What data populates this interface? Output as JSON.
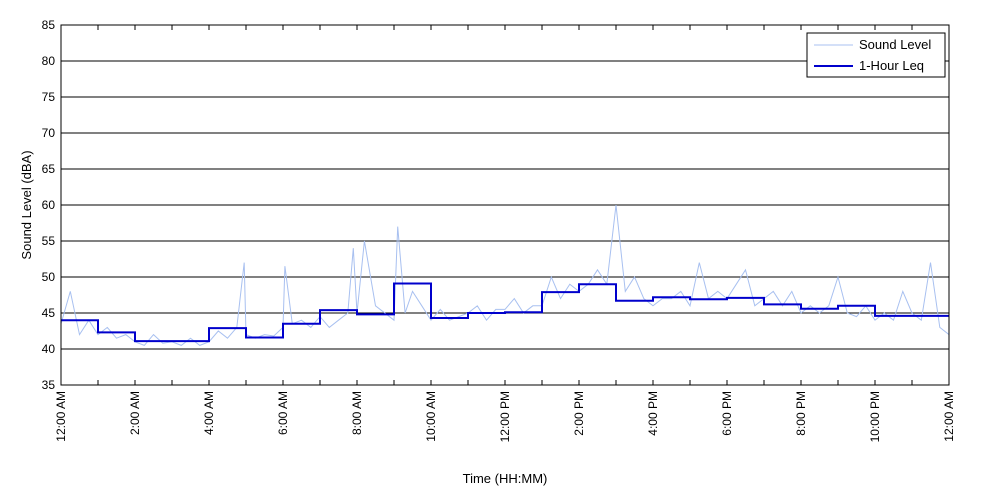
{
  "chart_data": {
    "type": "line",
    "xlabel": "Time (HH:MM)",
    "ylabel": "Sound Level (dBA)",
    "ylim": [
      35,
      85
    ],
    "xlim_hours": [
      0,
      24
    ],
    "yticks": [
      35,
      40,
      45,
      50,
      55,
      60,
      65,
      70,
      75,
      80,
      85
    ],
    "xticks": [
      {
        "hour": 0,
        "label": "12:00 AM"
      },
      {
        "hour": 2,
        "label": "2:00 AM"
      },
      {
        "hour": 4,
        "label": "4:00 AM"
      },
      {
        "hour": 6,
        "label": "6:00 AM"
      },
      {
        "hour": 8,
        "label": "8:00 AM"
      },
      {
        "hour": 10,
        "label": "10:00 AM"
      },
      {
        "hour": 12,
        "label": "12:00 PM"
      },
      {
        "hour": 14,
        "label": "2:00 PM"
      },
      {
        "hour": 16,
        "label": "4:00 PM"
      },
      {
        "hour": 18,
        "label": "6:00 PM"
      },
      {
        "hour": 20,
        "label": "8:00 PM"
      },
      {
        "hour": 22,
        "label": "10:00 PM"
      },
      {
        "hour": 24,
        "label": "12:00 AM"
      }
    ],
    "grid": "horizontal",
    "legend_position": "top-right",
    "series": [
      {
        "name": "Sound Level",
        "color": "#a8c0f0",
        "style": "thin-line",
        "x_hours": [
          0.0,
          0.25,
          0.5,
          0.75,
          1.0,
          1.25,
          1.5,
          1.75,
          2.0,
          2.25,
          2.5,
          2.75,
          3.0,
          3.25,
          3.5,
          3.75,
          4.0,
          4.25,
          4.5,
          4.75,
          4.95,
          5.0,
          5.25,
          5.5,
          5.75,
          6.0,
          6.05,
          6.25,
          6.5,
          6.75,
          7.0,
          7.25,
          7.5,
          7.75,
          7.9,
          8.0,
          8.2,
          8.5,
          8.75,
          9.0,
          9.1,
          9.3,
          9.5,
          9.75,
          10.0,
          10.25,
          10.5,
          10.75,
          11.0,
          11.25,
          11.5,
          11.75,
          12.0,
          12.25,
          12.5,
          12.75,
          13.0,
          13.25,
          13.5,
          13.75,
          14.0,
          14.25,
          14.5,
          14.75,
          15.0,
          15.25,
          15.5,
          15.75,
          16.0,
          16.25,
          16.5,
          16.75,
          17.0,
          17.25,
          17.5,
          17.75,
          18.0,
          18.25,
          18.5,
          18.75,
          19.0,
          19.25,
          19.5,
          19.75,
          20.0,
          20.25,
          20.5,
          20.75,
          21.0,
          21.25,
          21.5,
          21.75,
          22.0,
          22.25,
          22.5,
          22.75,
          23.0,
          23.25,
          23.5,
          23.75,
          24.0
        ],
        "values": [
          43.5,
          48,
          42,
          44,
          42,
          43,
          41.5,
          42,
          41,
          40.5,
          42,
          40.8,
          41,
          40.5,
          41.5,
          40.5,
          41,
          42.5,
          41.5,
          43,
          52,
          42,
          41.5,
          42,
          41.8,
          43,
          51.5,
          43.5,
          44,
          43,
          44.5,
          43,
          44,
          45,
          54,
          45,
          55,
          46,
          45,
          44,
          57,
          45,
          48,
          46,
          44,
          45.5,
          44,
          44.5,
          45,
          46,
          44,
          45.5,
          45.5,
          47,
          45,
          46,
          46,
          50,
          47,
          49,
          48,
          49,
          51,
          49,
          60,
          48,
          50,
          47,
          46,
          47,
          47,
          48,
          46,
          52,
          47,
          48,
          47,
          49,
          51,
          46,
          47,
          48,
          46,
          48,
          45,
          46,
          45,
          46,
          50,
          45,
          44.5,
          46,
          44,
          45,
          44,
          48,
          45,
          44,
          52,
          43,
          42
        ]
      },
      {
        "name": "1-Hour Leq",
        "color": "#0000cc",
        "style": "step",
        "x_hours": [
          0,
          1,
          2,
          3,
          4,
          5,
          6,
          7,
          8,
          9,
          10,
          11,
          12,
          13,
          14,
          15,
          16,
          17,
          18,
          19,
          20,
          21,
          22,
          23
        ],
        "values": [
          44.0,
          42.3,
          41.1,
          41.1,
          42.9,
          41.6,
          43.5,
          45.4,
          44.8,
          49.1,
          44.3,
          45.0,
          45.1,
          47.9,
          49.0,
          46.7,
          47.2,
          46.9,
          47.1,
          46.2,
          45.6,
          46.0,
          44.6,
          44.6
        ]
      }
    ]
  }
}
